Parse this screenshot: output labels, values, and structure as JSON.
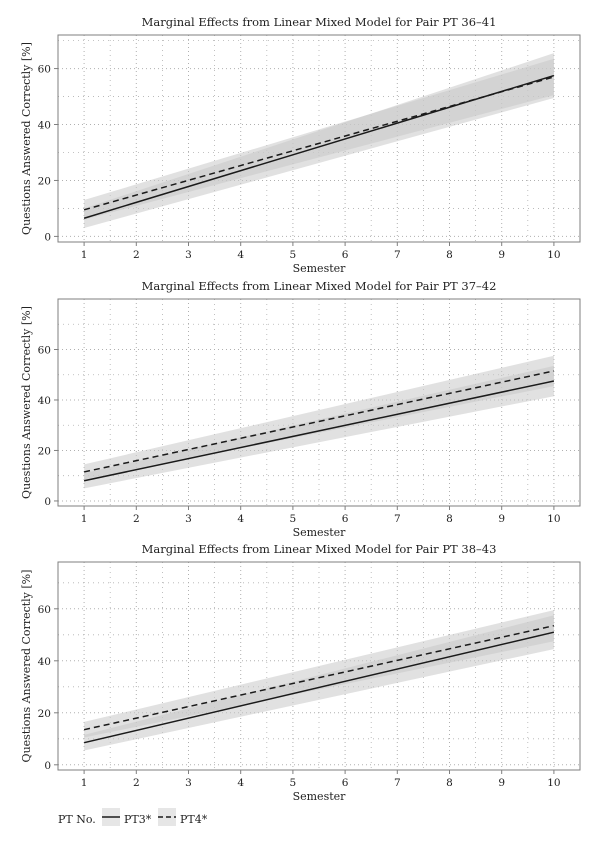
{
  "chart_data": [
    {
      "type": "line",
      "title": "Marginal Effects from Linear Mixed Model for Pair PT 36–41",
      "xlabel": "Semester",
      "ylabel": "Questions Answered Correctly [%]",
      "xlim": [
        0.5,
        10.5
      ],
      "ylim": [
        -2,
        72
      ],
      "xticks": [
        1,
        2,
        3,
        4,
        5,
        6,
        7,
        8,
        9,
        10
      ],
      "yticks": [
        0,
        20,
        40,
        60
      ],
      "grid": true,
      "x": [
        1,
        10
      ],
      "series": [
        {
          "name": "PT3*",
          "line": "solid",
          "values": [
            6.5,
            57.5
          ],
          "ci_lower": [
            3.0,
            49.5
          ],
          "ci_upper": [
            10.0,
            65.5
          ]
        },
        {
          "name": "PT4*",
          "line": "dashed",
          "values": [
            9.5,
            57.0
          ],
          "ci_lower": [
            6.0,
            50.5
          ],
          "ci_upper": [
            13.0,
            63.5
          ]
        }
      ]
    },
    {
      "type": "line",
      "title": "Marginal Effects from Linear Mixed Model for Pair PT 37–42",
      "xlabel": "Semester",
      "ylabel": "Questions Answered Correctly [%]",
      "xlim": [
        0.5,
        10.5
      ],
      "ylim": [
        -2,
        80
      ],
      "xticks": [
        1,
        2,
        3,
        4,
        5,
        6,
        7,
        8,
        9,
        10
      ],
      "yticks": [
        0,
        20,
        40,
        60
      ],
      "grid": true,
      "x": [
        1,
        10
      ],
      "series": [
        {
          "name": "PT3*",
          "line": "solid",
          "values": [
            8.0,
            47.5
          ],
          "ci_lower": [
            5.0,
            41.5
          ],
          "ci_upper": [
            11.0,
            53.5
          ]
        },
        {
          "name": "PT4*",
          "line": "dashed",
          "values": [
            11.5,
            51.5
          ],
          "ci_lower": [
            8.5,
            45.5
          ],
          "ci_upper": [
            14.5,
            57.5
          ]
        }
      ]
    },
    {
      "type": "line",
      "title": "Marginal Effects from Linear Mixed Model for Pair PT 38–43",
      "xlabel": "Semester",
      "ylabel": "Questions Answered Correctly [%]",
      "xlim": [
        0.5,
        10.5
      ],
      "ylim": [
        -2,
        78
      ],
      "xticks": [
        1,
        2,
        3,
        4,
        5,
        6,
        7,
        8,
        9,
        10
      ],
      "yticks": [
        0,
        20,
        40,
        60
      ],
      "grid": true,
      "x": [
        1,
        10
      ],
      "series": [
        {
          "name": "PT3*",
          "line": "solid",
          "values": [
            8.5,
            51.0
          ],
          "ci_lower": [
            5.5,
            44.5
          ],
          "ci_upper": [
            11.5,
            57.5
          ]
        },
        {
          "name": "PT4*",
          "line": "dashed",
          "values": [
            13.5,
            53.5
          ],
          "ci_lower": [
            10.5,
            47.5
          ],
          "ci_upper": [
            16.5,
            59.5
          ]
        }
      ]
    }
  ],
  "legend": {
    "title": "PT No.",
    "entries": [
      {
        "label": "PT3*",
        "line": "solid"
      },
      {
        "label": "PT4*",
        "line": "dashed"
      }
    ],
    "placement": "bottom-left"
  },
  "colors": {
    "line": "#1a1a1a",
    "band": "#c8c8c8",
    "grid": "#b0b0b0",
    "frame": "#7f7f7f"
  }
}
